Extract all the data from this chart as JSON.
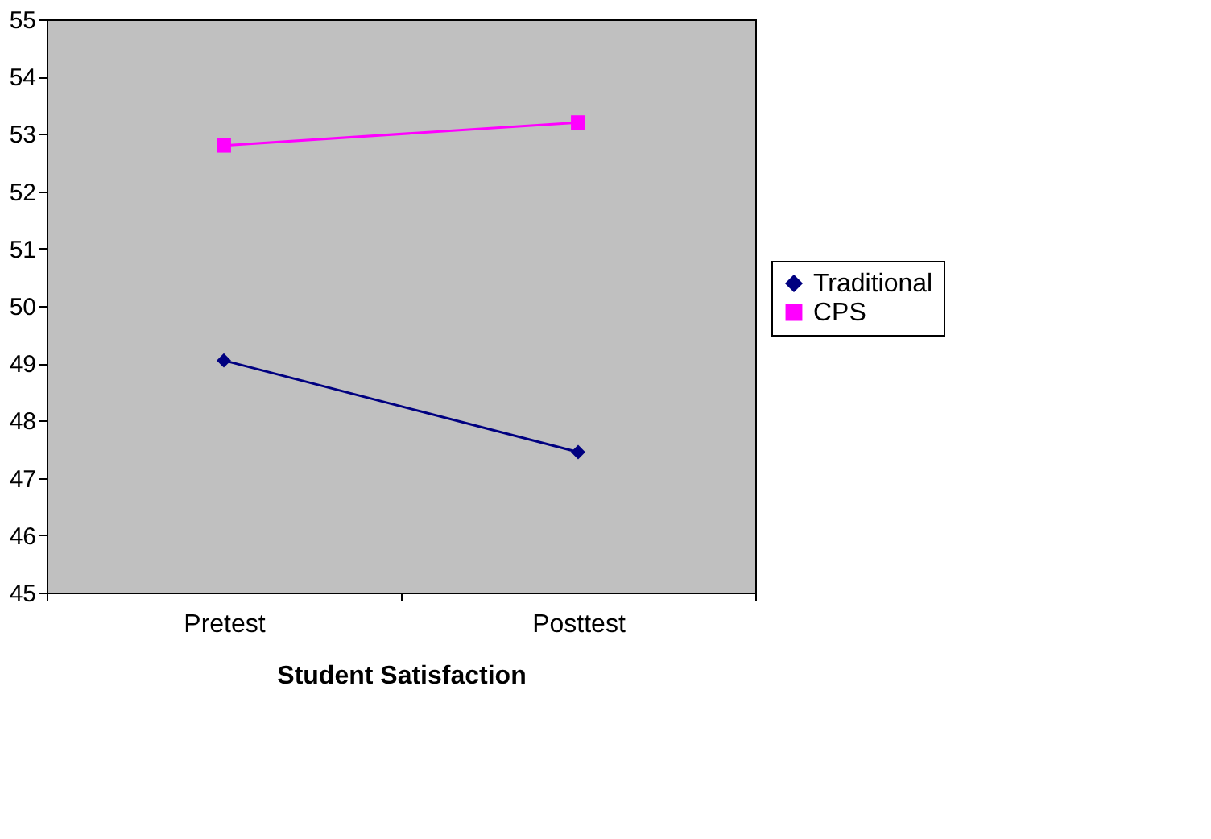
{
  "chart_data": {
    "type": "line",
    "xlabel": "Student Satisfaction",
    "categories": [
      "Pretest",
      "Posttest"
    ],
    "series": [
      {
        "name": "Traditional",
        "color": "#000080",
        "marker": "diamond",
        "values": [
          49.05,
          47.45
        ]
      },
      {
        "name": "CPS",
        "color": "#ff00ff",
        "marker": "square",
        "values": [
          52.8,
          53.2
        ]
      }
    ],
    "ylim": [
      45,
      55
    ],
    "yticks": [
      45,
      46,
      47,
      48,
      49,
      50,
      51,
      52,
      53,
      54,
      55
    ],
    "grid": false,
    "legend": "right"
  }
}
